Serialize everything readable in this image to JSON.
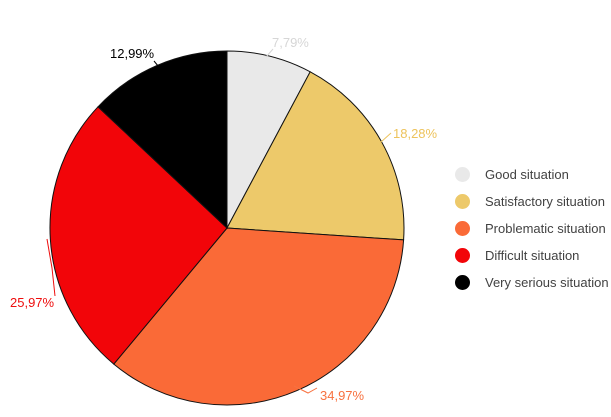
{
  "page": {
    "background": "#ffffff"
  },
  "chart_data": {
    "type": "pie",
    "title": "",
    "legend_position": "right",
    "direction": "clockwise",
    "start_angle": "top",
    "grid": "off",
    "slice_border_color": "#111111",
    "legend_text_color": "#424242",
    "slices": [
      {
        "label": "Good situation",
        "value": 7.79,
        "pct_label": "7,79%",
        "color": "#e9e9e9",
        "label_color": "#d6d6d6"
      },
      {
        "label": "Satisfactory situation",
        "value": 18.28,
        "pct_label": "18,28%",
        "color": "#edc96a",
        "label_color": "#edc35c"
      },
      {
        "label": "Problematic situation",
        "value": 34.97,
        "pct_label": "34,97%",
        "color": "#fa6a37",
        "label_color": "#f8713f"
      },
      {
        "label": "Difficult situation",
        "value": 25.97,
        "pct_label": "25,97%",
        "color": "#f20509",
        "label_color": "#ee0d0d"
      },
      {
        "label": "Very serious situation",
        "value": 12.99,
        "pct_label": "12,99%",
        "color": "#000000",
        "label_color": "#000000"
      }
    ]
  }
}
